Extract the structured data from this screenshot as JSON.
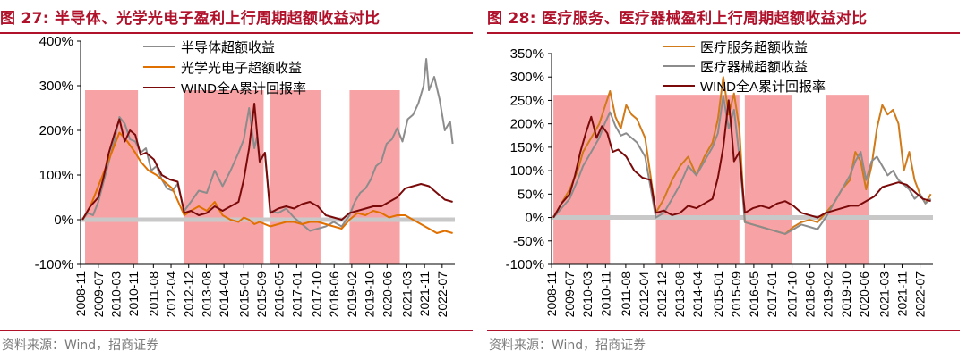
{
  "chart_data": [
    {
      "type": "line",
      "title": "图 27:  半导体、光学光电子盈利上行周期超额收益对比",
      "source": "资料来源：Wind，招商证券",
      "ylim": [
        -100,
        400
      ],
      "yticks": [
        -100,
        0,
        100,
        200,
        300,
        400
      ],
      "ytick_labels": [
        "-100%",
        "0%",
        "100%",
        "200%",
        "300%",
        "400%"
      ],
      "categories": [
        "2008-11",
        "2009-07",
        "2010-03",
        "2010-11",
        "2011-08",
        "2012-04",
        "2012-12",
        "2013-08",
        "2014-04",
        "2015-01",
        "2015-09",
        "2016-05",
        "2017-01",
        "2017-10",
        "2018-06",
        "2019-02",
        "2019-10",
        "2020-06",
        "2021-03",
        "2021-11",
        "2022-07"
      ],
      "legend": [
        {
          "name": "半导体超额收益",
          "color": "#8c8c8c"
        },
        {
          "name": "光学光电子超额收益",
          "color": "#e07000"
        },
        {
          "name": "WIND全A累计回报率",
          "color": "#7a0a0a"
        }
      ],
      "shaded_periods": [
        [
          2009.0,
          2011.0
        ],
        [
          2012.75,
          2015.75
        ],
        [
          2016.0,
          2017.9
        ],
        [
          2019.0,
          2020.9
        ]
      ],
      "series": [
        {
          "name": "半导体超额收益",
          "color": "#8c8c8c",
          "x": [
            2008.9,
            2009.1,
            2009.3,
            2009.5,
            2009.7,
            2009.9,
            2010.1,
            2010.3,
            2010.5,
            2010.7,
            2010.9,
            2011.1,
            2011.3,
            2011.5,
            2011.7,
            2011.9,
            2012.1,
            2012.3,
            2012.5,
            2012.75,
            2013.0,
            2013.3,
            2013.6,
            2013.9,
            2014.2,
            2014.5,
            2014.8,
            2015.0,
            2015.2,
            2015.4,
            2015.5,
            2015.6,
            2015.8,
            2016.0,
            2016.3,
            2016.6,
            2016.9,
            2017.2,
            2017.5,
            2017.8,
            2018.1,
            2018.4,
            2018.7,
            2019.0,
            2019.2,
            2019.4,
            2019.6,
            2019.8,
            2020.0,
            2020.2,
            2020.4,
            2020.6,
            2020.8,
            2021.0,
            2021.2,
            2021.4,
            2021.6,
            2021.8,
            2021.9,
            2022.0,
            2022.2,
            2022.4,
            2022.6,
            2022.8,
            2022.9
          ],
          "values": [
            0,
            15,
            10,
            40,
            85,
            130,
            175,
            230,
            215,
            180,
            175,
            150,
            160,
            110,
            120,
            90,
            70,
            65,
            80,
            20,
            40,
            65,
            60,
            110,
            75,
            110,
            150,
            180,
            250,
            160,
            185,
            130,
            150,
            20,
            15,
            25,
            5,
            -10,
            -25,
            -20,
            -15,
            -5,
            -15,
            10,
            40,
            60,
            70,
            90,
            120,
            130,
            170,
            180,
            205,
            175,
            225,
            235,
            260,
            300,
            360,
            290,
            320,
            270,
            200,
            220,
            170
          ]
        },
        {
          "name": "光学光电子超额收益",
          "color": "#e07000",
          "x": [
            2008.9,
            2009.2,
            2009.5,
            2009.8,
            2010.0,
            2010.3,
            2010.6,
            2010.9,
            2011.1,
            2011.4,
            2011.7,
            2012.0,
            2012.3,
            2012.75,
            2013.0,
            2013.3,
            2013.6,
            2013.9,
            2014.2,
            2014.5,
            2014.8,
            2015.0,
            2015.2,
            2015.4,
            2015.6,
            2015.8,
            2016.0,
            2016.3,
            2016.6,
            2016.9,
            2017.2,
            2017.5,
            2017.8,
            2018.1,
            2018.4,
            2018.7,
            2019.0,
            2019.3,
            2019.6,
            2019.9,
            2020.2,
            2020.5,
            2020.8,
            2021.1,
            2021.4,
            2021.7,
            2022.0,
            2022.3,
            2022.6,
            2022.9
          ],
          "values": [
            0,
            30,
            75,
            120,
            150,
            195,
            175,
            150,
            130,
            110,
            100,
            85,
            70,
            10,
            20,
            30,
            20,
            40,
            10,
            0,
            -5,
            5,
            0,
            -10,
            -5,
            -10,
            -15,
            -10,
            -5,
            -5,
            -10,
            -5,
            -5,
            -10,
            -15,
            -20,
            0,
            15,
            10,
            20,
            15,
            5,
            10,
            10,
            0,
            -10,
            -20,
            -30,
            -25,
            -30
          ]
        },
        {
          "name": "WIND全A累计回报率",
          "color": "#7a0a0a",
          "x": [
            2008.9,
            2009.2,
            2009.5,
            2009.7,
            2009.9,
            2010.1,
            2010.3,
            2010.5,
            2010.7,
            2010.9,
            2011.1,
            2011.3,
            2011.6,
            2011.9,
            2012.2,
            2012.5,
            2012.75,
            2013.0,
            2013.3,
            2013.6,
            2013.9,
            2014.2,
            2014.5,
            2014.8,
            2015.0,
            2015.2,
            2015.4,
            2015.5,
            2015.6,
            2015.8,
            2016.0,
            2016.3,
            2016.6,
            2016.9,
            2017.2,
            2017.5,
            2017.8,
            2018.1,
            2018.4,
            2018.7,
            2019.0,
            2019.3,
            2019.6,
            2019.9,
            2020.2,
            2020.5,
            2020.8,
            2021.1,
            2021.4,
            2021.7,
            2022.0,
            2022.3,
            2022.6,
            2022.9
          ],
          "values": [
            0,
            30,
            50,
            95,
            150,
            190,
            225,
            175,
            200,
            190,
            145,
            150,
            135,
            100,
            90,
            85,
            15,
            20,
            10,
            15,
            30,
            20,
            30,
            40,
            90,
            160,
            260,
            195,
            130,
            150,
            15,
            25,
            30,
            25,
            35,
            40,
            30,
            10,
            5,
            0,
            15,
            20,
            25,
            30,
            30,
            40,
            50,
            70,
            75,
            80,
            75,
            60,
            45,
            40
          ]
        }
      ]
    },
    {
      "type": "line",
      "title": "图 28:  医疗服务、医疗器械盈利上行周期超额收益对比",
      "source": "资料来源：Wind，招商证券",
      "ylim": [
        -100,
        350
      ],
      "yticks": [
        -100,
        -50,
        0,
        50,
        100,
        150,
        200,
        250,
        300,
        350
      ],
      "ytick_labels": [
        "-100%",
        "-50%",
        "0%",
        "50%",
        "100%",
        "150%",
        "200%",
        "250%",
        "300%",
        "350%"
      ],
      "categories": [
        "2008-11",
        "2009-07",
        "2010-03",
        "2010-11",
        "2011-08",
        "2012-04",
        "2012-12",
        "2013-08",
        "2014-04",
        "2015-01",
        "2015-09",
        "2016-05",
        "2017-01",
        "2017-10",
        "2018-06",
        "2019-02",
        "2019-10",
        "2020-06",
        "2021-03",
        "2021-11",
        "2022-07"
      ],
      "legend": [
        {
          "name": "医疗服务超额收益",
          "color": "#d07a1a"
        },
        {
          "name": "医疗器械超额收益",
          "color": "#8c8c8c"
        },
        {
          "name": "WIND全A累计回报率",
          "color": "#7a0a0a"
        }
      ],
      "shaded_periods": [
        [
          2008.9,
          2011.0
        ],
        [
          2012.7,
          2015.8
        ],
        [
          2016.0,
          2017.75
        ],
        [
          2019.0,
          2020.6
        ]
      ],
      "series": [
        {
          "name": "医疗服务超额收益",
          "color": "#d07a1a",
          "x": [
            2008.9,
            2009.2,
            2009.5,
            2009.8,
            2010.0,
            2010.3,
            2010.6,
            2010.8,
            2011.0,
            2011.2,
            2011.4,
            2011.6,
            2011.8,
            2012.0,
            2012.3,
            2012.7,
            2013.0,
            2013.3,
            2013.6,
            2013.9,
            2014.2,
            2014.5,
            2014.8,
            2015.0,
            2015.2,
            2015.4,
            2015.6,
            2015.8,
            2016.0,
            2016.3,
            2016.6,
            2016.9,
            2017.2,
            2017.5,
            2017.8,
            2018.1,
            2018.4,
            2018.7,
            2019.0,
            2019.3,
            2019.6,
            2019.9,
            2020.1,
            2020.3,
            2020.5,
            2020.7,
            2020.9,
            2021.1,
            2021.3,
            2021.5,
            2021.7,
            2021.9,
            2022.1,
            2022.3,
            2022.5,
            2022.7,
            2022.9
          ],
          "values": [
            0,
            30,
            60,
            100,
            140,
            170,
            200,
            235,
            270,
            215,
            190,
            240,
            220,
            210,
            170,
            10,
            40,
            80,
            110,
            130,
            90,
            130,
            160,
            210,
            300,
            220,
            265,
            190,
            -10,
            -15,
            -20,
            -25,
            -30,
            -35,
            -20,
            -10,
            -5,
            -10,
            10,
            30,
            60,
            80,
            140,
            120,
            60,
            110,
            190,
            240,
            220,
            230,
            200,
            100,
            140,
            80,
            50,
            30,
            50
          ]
        },
        {
          "name": "医疗器械超额收益",
          "color": "#8c8c8c",
          "x": [
            2008.9,
            2009.2,
            2009.5,
            2009.8,
            2010.0,
            2010.3,
            2010.6,
            2010.8,
            2011.0,
            2011.2,
            2011.4,
            2011.6,
            2011.8,
            2012.0,
            2012.3,
            2012.7,
            2013.0,
            2013.3,
            2013.6,
            2013.9,
            2014.2,
            2014.5,
            2014.8,
            2015.0,
            2015.2,
            2015.4,
            2015.6,
            2015.8,
            2016.0,
            2016.3,
            2016.6,
            2016.9,
            2017.2,
            2017.5,
            2017.8,
            2018.1,
            2018.4,
            2018.7,
            2019.0,
            2019.3,
            2019.6,
            2019.9,
            2020.1,
            2020.3,
            2020.5,
            2020.7,
            2020.9,
            2021.1,
            2021.3,
            2021.5,
            2021.7,
            2021.9,
            2022.1,
            2022.3,
            2022.5,
            2022.7,
            2022.9
          ],
          "values": [
            0,
            20,
            40,
            80,
            110,
            140,
            170,
            200,
            225,
            195,
            175,
            180,
            170,
            160,
            130,
            0,
            10,
            40,
            70,
            110,
            90,
            120,
            150,
            180,
            260,
            190,
            230,
            130,
            -10,
            -15,
            -20,
            -25,
            -30,
            -35,
            -25,
            -15,
            -20,
            -25,
            0,
            30,
            60,
            90,
            120,
            140,
            80,
            120,
            130,
            110,
            90,
            100,
            80,
            70,
            60,
            40,
            50,
            30,
            40
          ]
        },
        {
          "name": "WIND全A累计回报率",
          "color": "#7a0a0a",
          "x": [
            2008.9,
            2009.2,
            2009.5,
            2009.7,
            2009.9,
            2010.1,
            2010.3,
            2010.5,
            2010.7,
            2010.9,
            2011.1,
            2011.3,
            2011.6,
            2011.9,
            2012.2,
            2012.5,
            2012.7,
            2013.0,
            2013.3,
            2013.6,
            2013.9,
            2014.2,
            2014.5,
            2014.8,
            2015.0,
            2015.2,
            2015.4,
            2015.5,
            2015.6,
            2015.8,
            2016.0,
            2016.3,
            2016.6,
            2016.9,
            2017.2,
            2017.5,
            2017.8,
            2018.1,
            2018.4,
            2018.7,
            2019.0,
            2019.3,
            2019.6,
            2019.9,
            2020.2,
            2020.5,
            2020.8,
            2021.1,
            2021.4,
            2021.7,
            2022.0,
            2022.3,
            2022.6,
            2022.9
          ],
          "values": [
            0,
            30,
            50,
            90,
            140,
            180,
            215,
            170,
            195,
            180,
            140,
            145,
            130,
            100,
            85,
            80,
            10,
            15,
            5,
            10,
            25,
            20,
            30,
            40,
            85,
            150,
            250,
            190,
            120,
            140,
            10,
            20,
            25,
            20,
            30,
            35,
            25,
            10,
            5,
            0,
            10,
            15,
            20,
            25,
            25,
            35,
            45,
            65,
            70,
            75,
            70,
            55,
            40,
            35
          ]
        }
      ]
    }
  ]
}
